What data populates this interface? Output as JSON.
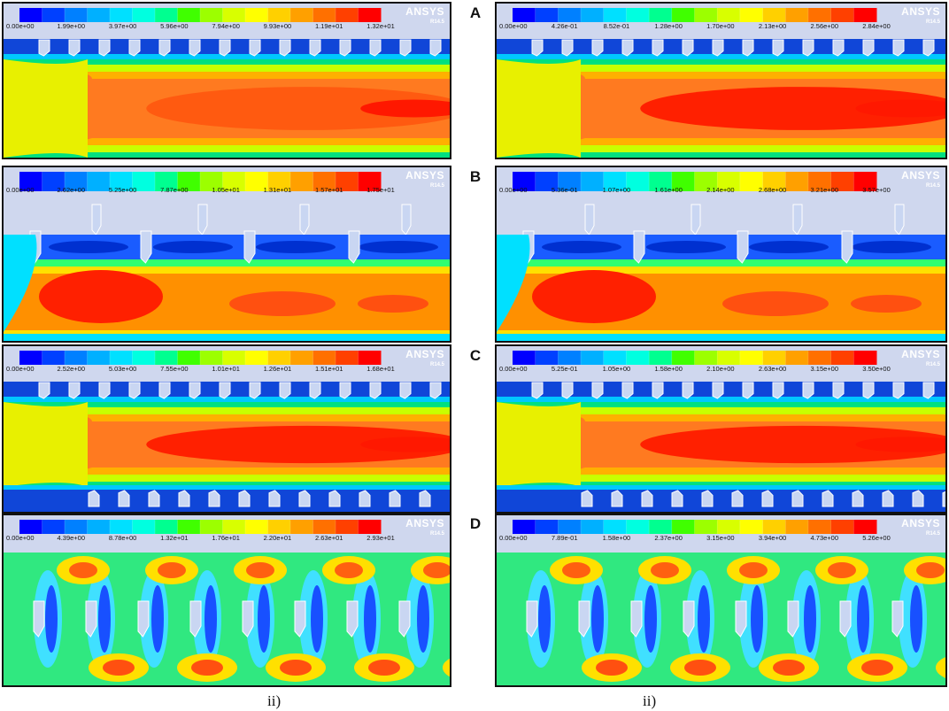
{
  "scale_colors": [
    "#0000ff",
    "#0040ff",
    "#0080ff",
    "#00b0ff",
    "#00e0ff",
    "#00ffe0",
    "#00ff90",
    "#40ff00",
    "#9cff00",
    "#d8ff00",
    "#ffff00",
    "#ffd000",
    "#ffa000",
    "#ff7000",
    "#ff4000",
    "#ff0000"
  ],
  "panels": [
    {
      "row": "A",
      "col": 0,
      "brand": "ANSYS",
      "version": "R14.5",
      "ticks": [
        "0.00e+00",
        "1.99e+00",
        "3.97e+00",
        "5.96e+00",
        "7.94e+00",
        "9.93e+00",
        "1.19e+01",
        "1.32e+01"
      ]
    },
    {
      "row": "A",
      "col": 1,
      "brand": "ANSYS",
      "version": "R14.5",
      "ticks": [
        "0.00e+00",
        "4.26e-01",
        "8.52e-01",
        "1.28e+00",
        "1.70e+00",
        "2.13e+00",
        "2.56e+00",
        "2.84e+00"
      ]
    },
    {
      "row": "B",
      "col": 0,
      "brand": "ANSYS",
      "version": "R14.5",
      "ticks": [
        "0.00e+00",
        "2.62e+00",
        "5.25e+00",
        "7.87e+00",
        "1.05e+01",
        "1.31e+01",
        "1.57e+01",
        "1.75e+01"
      ]
    },
    {
      "row": "B",
      "col": 1,
      "brand": "ANSYS",
      "version": "R14.5",
      "ticks": [
        "0.00e+00",
        "5.36e-01",
        "1.07e+00",
        "1.61e+00",
        "2.14e+00",
        "2.68e+00",
        "3.21e+00",
        "3.57e+00"
      ]
    },
    {
      "row": "C",
      "col": 0,
      "brand": "ANSYS",
      "version": "R14.5",
      "ticks": [
        "0.00e+00",
        "2.52e+00",
        "5.03e+00",
        "7.55e+00",
        "1.01e+01",
        "1.26e+01",
        "1.51e+01",
        "1.68e+01"
      ]
    },
    {
      "row": "C",
      "col": 1,
      "brand": "ANSYS",
      "version": "R14.5",
      "ticks": [
        "0.00e+00",
        "5.25e-01",
        "1.05e+00",
        "1.58e+00",
        "2.10e+00",
        "2.63e+00",
        "3.15e+00",
        "3.50e+00"
      ]
    },
    {
      "row": "D",
      "col": 0,
      "brand": "ANSYS",
      "version": "R14.5",
      "ticks": [
        "0.00e+00",
        "4.39e+00",
        "8.78e+00",
        "1.32e+01",
        "1.76e+01",
        "2.20e+01",
        "2.63e+01",
        "2.93e+01"
      ]
    },
    {
      "row": "D",
      "col": 1,
      "brand": "ANSYS",
      "version": "R14.5",
      "ticks": [
        "0.00e+00",
        "7.89e-01",
        "1.58e+00",
        "2.37e+00",
        "3.15e+00",
        "3.94e+00",
        "4.73e+00",
        "5.26e+00"
      ]
    }
  ],
  "row_labels": {
    "A": "A",
    "B": "B",
    "C": "C",
    "D": "D"
  },
  "captions": {
    "left": "ii)",
    "right": "ii)"
  }
}
